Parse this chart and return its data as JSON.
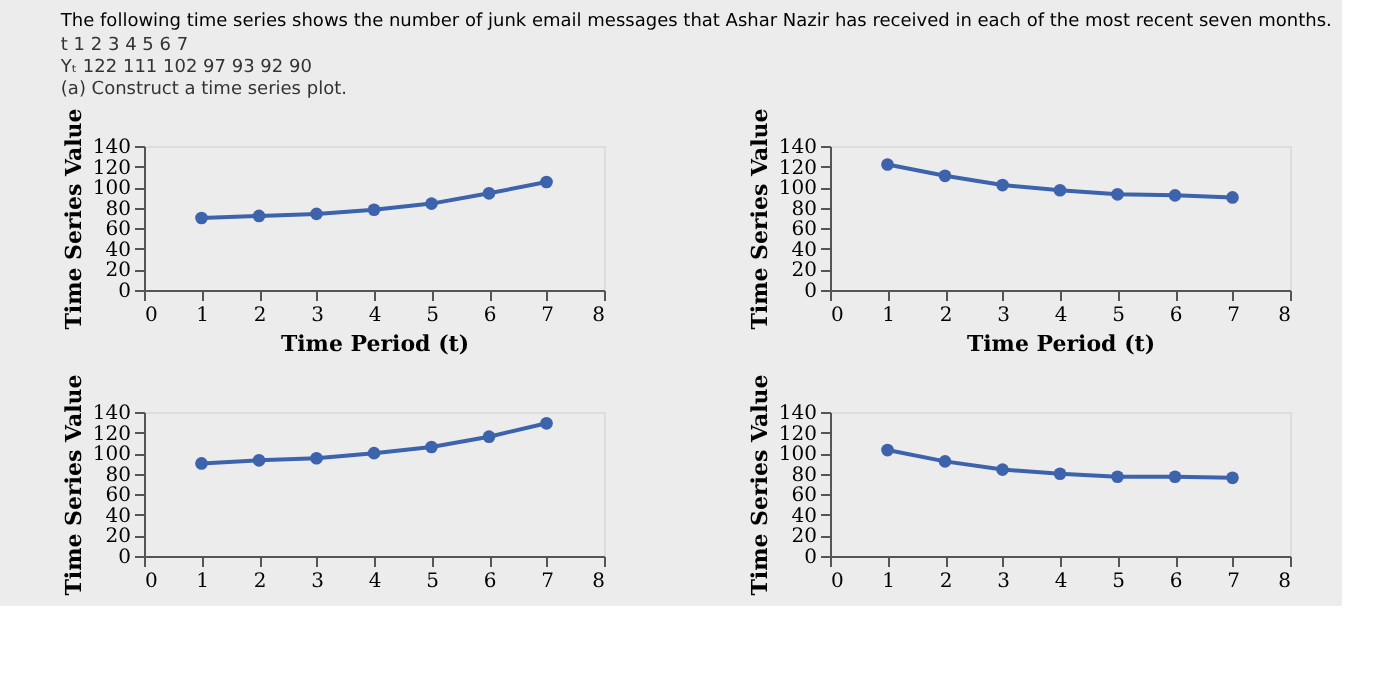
{
  "chart_data": [
    {
      "type": "line",
      "annotations": [
        "The following time series shows the number of junk email messages that Ashar Nazir has received in each of the most recent seven months.",
        "t      1      2      3      4      5      6      7",
        "Yₜ   122   111   102   97   93   92   90",
        "(a) Construct a time series plot."
      ],
      "xlabel": "Time Period (t)",
      "ylabel": "Time Series Value",
      "x": [
        1,
        2,
        3,
        4,
        5,
        6,
        7
      ],
      "series": [
        {
          "color": "#3d63ad",
          "values": [
            70,
            72,
            74,
            78,
            84,
            94,
            105
          ]
        }
      ],
      "xlim": [
        0,
        8
      ],
      "xticks": [
        0,
        1,
        2,
        3,
        4,
        5,
        6,
        7,
        8
      ],
      "ylim": [
        0,
        140
      ],
      "yticks": [
        0,
        20,
        40,
        60,
        80,
        100,
        120,
        140
      ],
      "grid": false,
      "marker": "circle",
      "line_style": "solid"
    },
    {
      "type": "line",
      "xlabel": "Time Period (t)",
      "ylabel": "Time Series Value",
      "x": [
        1,
        2,
        3,
        4,
        5,
        6,
        7
      ],
      "series": [
        {
          "color": "#3d63ad",
          "values": [
            122,
            111,
            102,
            97,
            93,
            92,
            90
          ]
        }
      ],
      "xlim": [
        0,
        8
      ],
      "xticks": [
        0,
        1,
        2,
        3,
        4,
        5,
        6,
        7,
        8
      ],
      "ylim": [
        0,
        140
      ],
      "yticks": [
        0,
        20,
        40,
        60,
        80,
        100,
        120,
        140
      ],
      "grid": false,
      "marker": "circle",
      "line_style": "solid"
    },
    {
      "type": "line",
      "ylabel": "Time Series Value",
      "x": [
        1,
        2,
        3,
        4,
        5,
        6,
        7
      ],
      "series": [
        {
          "color": "#3d63ad",
          "values": [
            90,
            93,
            95,
            100,
            106,
            116,
            129
          ]
        }
      ],
      "xlim": [
        0,
        8
      ],
      "xticks": [
        0,
        1,
        2,
        3,
        4,
        5,
        6,
        7,
        8
      ],
      "ylim": [
        0,
        140
      ],
      "yticks": [
        0,
        20,
        40,
        60,
        80,
        100,
        120,
        140
      ],
      "grid": false,
      "marker": "circle",
      "line_style": "solid"
    },
    {
      "type": "line",
      "ylabel": "Time Series Value",
      "x": [
        1,
        2,
        3,
        4,
        5,
        6,
        7
      ],
      "series": [
        {
          "color": "#3d63ad",
          "values": [
            103,
            92,
            84,
            80,
            77,
            77,
            76
          ]
        }
      ],
      "xlim": [
        0,
        8
      ],
      "xticks": [
        0,
        1,
        2,
        3,
        4,
        5,
        6,
        7,
        8
      ],
      "ylim": [
        0,
        140
      ],
      "yticks": [
        0,
        20,
        40,
        60,
        80,
        100,
        120,
        140
      ],
      "grid": false,
      "marker": "circle",
      "line_style": "solid"
    }
  ]
}
